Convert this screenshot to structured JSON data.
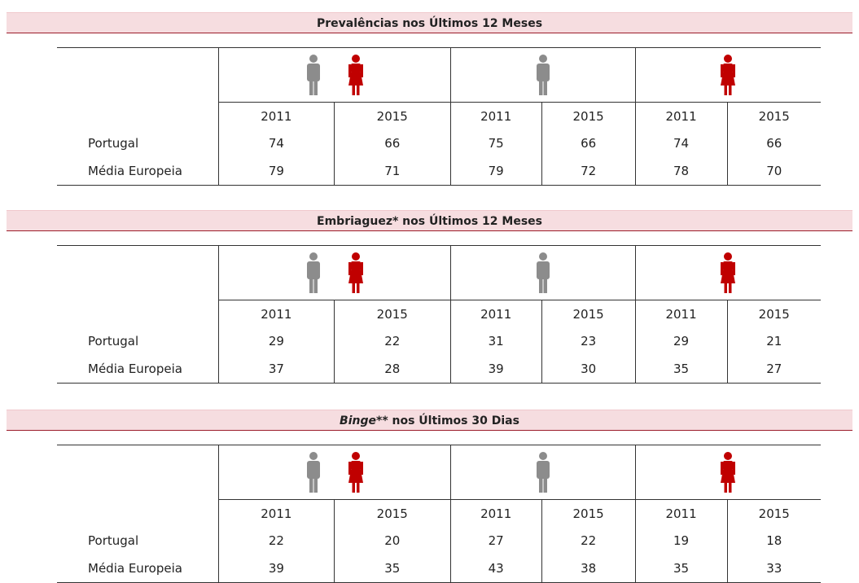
{
  "sections": [
    {
      "title": [
        {
          "text": "Prevalências nos Últimos 12 Meses"
        }
      ],
      "years": [
        "2011",
        "2015",
        "2011",
        "2015",
        "2011",
        "2015"
      ],
      "rows": [
        {
          "label": "Portugal",
          "values": [
            74,
            66,
            75,
            66,
            74,
            66
          ]
        },
        {
          "label": "Média Europeia",
          "values": [
            79,
            71,
            79,
            72,
            78,
            70
          ]
        }
      ]
    },
    {
      "title": [
        {
          "text": "Embriaguez* nos Últimos 12 Meses"
        }
      ],
      "years": [
        "2011",
        "2015",
        "2011",
        "2015",
        "2011",
        "2015"
      ],
      "rows": [
        {
          "label": "Portugal",
          "values": [
            29,
            22,
            31,
            23,
            29,
            21
          ]
        },
        {
          "label": "Média Europeia",
          "values": [
            37,
            28,
            39,
            30,
            35,
            27
          ]
        }
      ]
    },
    {
      "title": [
        {
          "text": "Binge",
          "italic": true
        },
        {
          "text": "** nos Últimos 30 Dias"
        }
      ],
      "years": [
        "2011",
        "2015",
        "2011",
        "2015",
        "2011",
        "2015"
      ],
      "rows": [
        {
          "label": "Portugal",
          "values": [
            22,
            20,
            27,
            22,
            19,
            18
          ]
        },
        {
          "label": "Média Europeia",
          "values": [
            39,
            35,
            43,
            38,
            35,
            33
          ]
        }
      ]
    }
  ]
}
